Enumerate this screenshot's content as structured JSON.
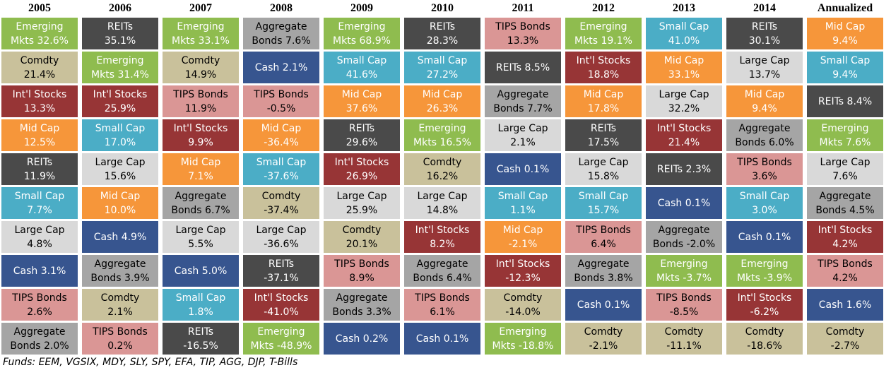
{
  "chart_data": {
    "type": "table",
    "columns": [
      "2005",
      "2006",
      "2007",
      "2008",
      "2009",
      "2010",
      "2011",
      "2012",
      "2013",
      "2014",
      "Annualized"
    ],
    "asset_colors": {
      "Emerging Mkts": "#8fbc4f",
      "REITs": "#4a4a4a",
      "Comdty": "#c9c19b",
      "Int'l Stocks": "#973536",
      "Mid Cap": "#f6963a",
      "Small Cap": "#4badc6",
      "Large Cap": "#d9d9d9",
      "Cash": "#37558f",
      "TIPS Bonds": "#da9695",
      "Aggregate Bonds": "#a5a5a5"
    },
    "text_colors": {
      "Emerging Mkts": "#ffffff",
      "REITs": "#ffffff",
      "Comdty": "#000000",
      "Int'l Stocks": "#ffffff",
      "Mid Cap": "#ffffff",
      "Small Cap": "#ffffff",
      "Large Cap": "#000000",
      "Cash": "#ffffff",
      "TIPS Bonds": "#000000",
      "Aggregate Bonds": "#000000"
    },
    "rows": [
      [
        {
          "asset": "Emerging Mkts",
          "label": "Emerging\nMkts 32.6%",
          "value": 32.6
        },
        {
          "asset": "Comdty",
          "label": "Comdty\n21.4%",
          "value": 21.4
        },
        {
          "asset": "Int'l Stocks",
          "label": "Int'l Stocks\n13.3%",
          "value": 13.3
        },
        {
          "asset": "Mid Cap",
          "label": "Mid Cap\n12.5%",
          "value": 12.5
        },
        {
          "asset": "REITs",
          "label": "REITs\n11.9%",
          "value": 11.9
        },
        {
          "asset": "Small Cap",
          "label": "Small Cap\n7.7%",
          "value": 7.7
        },
        {
          "asset": "Large Cap",
          "label": "Large Cap\n4.8%",
          "value": 4.8
        },
        {
          "asset": "Cash",
          "label": "Cash 3.1%",
          "value": 3.1
        },
        {
          "asset": "TIPS Bonds",
          "label": "TIPS Bonds\n2.6%",
          "value": 2.6
        },
        {
          "asset": "Aggregate Bonds",
          "label": "Aggregate\nBonds 2.0%",
          "value": 2.0
        }
      ],
      [
        {
          "asset": "REITs",
          "label": "REITs\n35.1%",
          "value": 35.1
        },
        {
          "asset": "Emerging Mkts",
          "label": "Emerging\nMkts 31.4%",
          "value": 31.4
        },
        {
          "asset": "Int'l Stocks",
          "label": "Int'l Stocks\n25.9%",
          "value": 25.9
        },
        {
          "asset": "Small Cap",
          "label": "Small Cap\n17.0%",
          "value": 17.0
        },
        {
          "asset": "Large Cap",
          "label": "Large Cap\n15.6%",
          "value": 15.6
        },
        {
          "asset": "Mid Cap",
          "label": "Mid Cap\n10.0%",
          "value": 10.0
        },
        {
          "asset": "Cash",
          "label": "Cash 4.9%",
          "value": 4.9
        },
        {
          "asset": "Aggregate Bonds",
          "label": "Aggregate\nBonds 3.9%",
          "value": 3.9
        },
        {
          "asset": "Comdty",
          "label": "Comdty\n2.1%",
          "value": 2.1
        },
        {
          "asset": "TIPS Bonds",
          "label": "TIPS Bonds\n0.2%",
          "value": 0.2
        }
      ],
      [
        {
          "asset": "Emerging Mkts",
          "label": "Emerging\nMkts 33.1%",
          "value": 33.1
        },
        {
          "asset": "Comdty",
          "label": "Comdty\n14.9%",
          "value": 14.9
        },
        {
          "asset": "TIPS Bonds",
          "label": "TIPS Bonds\n11.9%",
          "value": 11.9
        },
        {
          "asset": "Int'l Stocks",
          "label": "Int'l Stocks\n9.9%",
          "value": 9.9
        },
        {
          "asset": "Mid Cap",
          "label": "Mid Cap\n7.1%",
          "value": 7.1
        },
        {
          "asset": "Aggregate Bonds",
          "label": "Aggregate\nBonds 6.7%",
          "value": 6.7
        },
        {
          "asset": "Large Cap",
          "label": "Large Cap\n5.5%",
          "value": 5.5
        },
        {
          "asset": "Cash",
          "label": "Cash 5.0%",
          "value": 5.0
        },
        {
          "asset": "Small Cap",
          "label": "Small Cap\n1.8%",
          "value": 1.8
        },
        {
          "asset": "REITs",
          "label": "REITs\n-16.5%",
          "value": -16.5
        }
      ],
      [
        {
          "asset": "Aggregate Bonds",
          "label": "Aggregate\nBonds 7.6%",
          "value": 7.6
        },
        {
          "asset": "Cash",
          "label": "Cash 2.1%",
          "value": 2.1
        },
        {
          "asset": "TIPS Bonds",
          "label": "TIPS Bonds\n-0.5%",
          "value": -0.5
        },
        {
          "asset": "Mid Cap",
          "label": "Mid Cap\n-36.4%",
          "value": -36.4
        },
        {
          "asset": "Small Cap",
          "label": "Small Cap\n-37.6%",
          "value": -37.6
        },
        {
          "asset": "Comdty",
          "label": "Comdty\n-37.4%",
          "value": -37.4
        },
        {
          "asset": "Large Cap",
          "label": "Large Cap\n-36.6%",
          "value": -36.6
        },
        {
          "asset": "REITs",
          "label": "REITs\n-37.1%",
          "value": -37.1
        },
        {
          "asset": "Int'l Stocks",
          "label": "Int'l Stocks\n-41.0%",
          "value": -41.0
        },
        {
          "asset": "Emerging Mkts",
          "label": "Emerging\nMkts -48.9%",
          "value": -48.9
        }
      ],
      [
        {
          "asset": "Emerging Mkts",
          "label": "Emerging\nMkts 68.9%",
          "value": 68.9
        },
        {
          "asset": "Small Cap",
          "label": "Small Cap\n41.6%",
          "value": 41.6
        },
        {
          "asset": "Mid Cap",
          "label": "Mid Cap\n37.6%",
          "value": 37.6
        },
        {
          "asset": "REITs",
          "label": "REITs\n29.6%",
          "value": 29.6
        },
        {
          "asset": "Int'l Stocks",
          "label": "Int'l Stocks\n26.9%",
          "value": 26.9
        },
        {
          "asset": "Large Cap",
          "label": "Large Cap\n25.9%",
          "value": 25.9
        },
        {
          "asset": "Comdty",
          "label": "Comdty\n20.1%",
          "value": 20.1
        },
        {
          "asset": "TIPS Bonds",
          "label": "TIPS Bonds\n8.9%",
          "value": 8.9
        },
        {
          "asset": "Aggregate Bonds",
          "label": "Aggregate\nBonds 3.3%",
          "value": 3.3
        },
        {
          "asset": "Cash",
          "label": "Cash 0.2%",
          "value": 0.2
        }
      ],
      [
        {
          "asset": "REITs",
          "label": "REITs\n28.3%",
          "value": 28.3
        },
        {
          "asset": "Small Cap",
          "label": "Small Cap\n27.2%",
          "value": 27.2
        },
        {
          "asset": "Mid Cap",
          "label": "Mid Cap\n26.3%",
          "value": 26.3
        },
        {
          "asset": "Emerging Mkts",
          "label": "Emerging\nMkts 16.5%",
          "value": 16.5
        },
        {
          "asset": "Comdty",
          "label": "Comdty\n16.2%",
          "value": 16.2
        },
        {
          "asset": "Large Cap",
          "label": "Large Cap\n14.8%",
          "value": 14.8
        },
        {
          "asset": "Int'l Stocks",
          "label": "Int'l Stocks\n8.2%",
          "value": 8.2
        },
        {
          "asset": "Aggregate Bonds",
          "label": "Aggregate\nBonds 6.4%",
          "value": 6.4
        },
        {
          "asset": "TIPS Bonds",
          "label": "TIPS Bonds\n6.1%",
          "value": 6.1
        },
        {
          "asset": "Cash",
          "label": "Cash 0.1%",
          "value": 0.1
        }
      ],
      [
        {
          "asset": "TIPS Bonds",
          "label": "TIPS Bonds\n13.3%",
          "value": 13.3
        },
        {
          "asset": "REITs",
          "label": "REITs  8.5%",
          "value": 8.5
        },
        {
          "asset": "Aggregate Bonds",
          "label": "Aggregate\nBonds 7.7%",
          "value": 7.7
        },
        {
          "asset": "Large Cap",
          "label": "Large Cap\n2.1%",
          "value": 2.1
        },
        {
          "asset": "Cash",
          "label": "Cash 0.1%",
          "value": 0.1
        },
        {
          "asset": "Small Cap",
          "label": "Small Cap\n1.1%",
          "value": 1.1
        },
        {
          "asset": "Mid Cap",
          "label": "Mid Cap\n-2.1%",
          "value": -2.1
        },
        {
          "asset": "Int'l Stocks",
          "label": "Int'l Stocks\n-12.3%",
          "value": -12.3
        },
        {
          "asset": "Comdty",
          "label": "Comdty\n-14.0%",
          "value": -14.0
        },
        {
          "asset": "Emerging Mkts",
          "label": "Emerging\nMkts -18.8%",
          "value": -18.8
        }
      ],
      [
        {
          "asset": "Emerging Mkts",
          "label": "Emerging\nMkts 19.1%",
          "value": 19.1
        },
        {
          "asset": "Int'l Stocks",
          "label": "Int'l Stocks\n18.8%",
          "value": 18.8
        },
        {
          "asset": "Mid Cap",
          "label": "Mid Cap\n17.8%",
          "value": 17.8
        },
        {
          "asset": "REITs",
          "label": "REITs\n17.5%",
          "value": 17.5
        },
        {
          "asset": "Large Cap",
          "label": "Large Cap\n15.8%",
          "value": 15.8
        },
        {
          "asset": "Small Cap",
          "label": "Small Cap\n15.7%",
          "value": 15.7
        },
        {
          "asset": "TIPS Bonds",
          "label": "TIPS Bonds\n6.4%",
          "value": 6.4
        },
        {
          "asset": "Aggregate Bonds",
          "label": "Aggregate\nBonds 3.8%",
          "value": 3.8
        },
        {
          "asset": "Cash",
          "label": "Cash 0.1%",
          "value": 0.1
        },
        {
          "asset": "Comdty",
          "label": "Comdty\n-2.1%",
          "value": -2.1
        }
      ],
      [
        {
          "asset": "Small Cap",
          "label": "Small Cap\n41.0%",
          "value": 41.0
        },
        {
          "asset": "Mid Cap",
          "label": "Mid Cap\n33.1%",
          "value": 33.1
        },
        {
          "asset": "Large Cap",
          "label": "Large Cap\n32.2%",
          "value": 32.2
        },
        {
          "asset": "Int'l Stocks",
          "label": "Int'l Stocks\n21.4%",
          "value": 21.4
        },
        {
          "asset": "REITs",
          "label": "REITs 2.3%",
          "value": 2.3
        },
        {
          "asset": "Cash",
          "label": "Cash 0.1%",
          "value": 0.1
        },
        {
          "asset": "Aggregate Bonds",
          "label": "Aggregate\nBonds -2.0%",
          "value": -2.0
        },
        {
          "asset": "Emerging Mkts",
          "label": "Emerging\nMkts -3.7%",
          "value": -3.7
        },
        {
          "asset": "TIPS Bonds",
          "label": "TIPS Bonds\n-8.5%",
          "value": -8.5
        },
        {
          "asset": "Comdty",
          "label": "Comdty\n-11.1%",
          "value": -11.1
        }
      ],
      [
        {
          "asset": "REITs",
          "label": "REITs\n30.1%",
          "value": 30.1
        },
        {
          "asset": "Large Cap",
          "label": "Large Cap\n13.7%",
          "value": 13.7
        },
        {
          "asset": "Mid Cap",
          "label": "Mid Cap\n9.4%",
          "value": 9.4
        },
        {
          "asset": "Aggregate Bonds",
          "label": "Aggregate\nBonds 6.0%",
          "value": 6.0
        },
        {
          "asset": "TIPS Bonds",
          "label": "TIPS Bonds\n3.6%",
          "value": 3.6
        },
        {
          "asset": "Small Cap",
          "label": "Small Cap\n3.0%",
          "value": 3.0
        },
        {
          "asset": "Cash",
          "label": "Cash 0.1%",
          "value": 0.1
        },
        {
          "asset": "Emerging Mkts",
          "label": "Emerging\nMkts -3.9%",
          "value": -3.9
        },
        {
          "asset": "Int'l Stocks",
          "label": "Int'l Stocks\n-6.2%",
          "value": -6.2
        },
        {
          "asset": "Comdty",
          "label": "Comdty\n-18.6%",
          "value": -18.6
        }
      ],
      [
        {
          "asset": "Mid Cap",
          "label": "Mid Cap\n9.4%",
          "value": 9.4
        },
        {
          "asset": "Small Cap",
          "label": "Small Cap\n9.4%",
          "value": 9.4
        },
        {
          "asset": "REITs",
          "label": "REITs 8.4%",
          "value": 8.4
        },
        {
          "asset": "Emerging Mkts",
          "label": "Emerging\nMkts 7.6%",
          "value": 7.6
        },
        {
          "asset": "Large Cap",
          "label": "Large Cap\n7.6%",
          "value": 7.6
        },
        {
          "asset": "Aggregate Bonds",
          "label": "Aggregate\nBonds 4.5%",
          "value": 4.5
        },
        {
          "asset": "Int'l Stocks",
          "label": "Int'l Stocks\n4.2%",
          "value": 4.2
        },
        {
          "asset": "TIPS Bonds",
          "label": "TIPS Bonds\n4.2%",
          "value": 4.2
        },
        {
          "asset": "Cash",
          "label": "Cash 1.6%",
          "value": 1.6
        },
        {
          "asset": "Comdty",
          "label": "Comdty\n-2.7%",
          "value": -2.7
        }
      ]
    ]
  },
  "footer": {
    "funds_note": "Funds: EEM, VGSIX, MDY, SLY, SPY, EFA, TIP, AGG, DJP, T-Bills"
  }
}
